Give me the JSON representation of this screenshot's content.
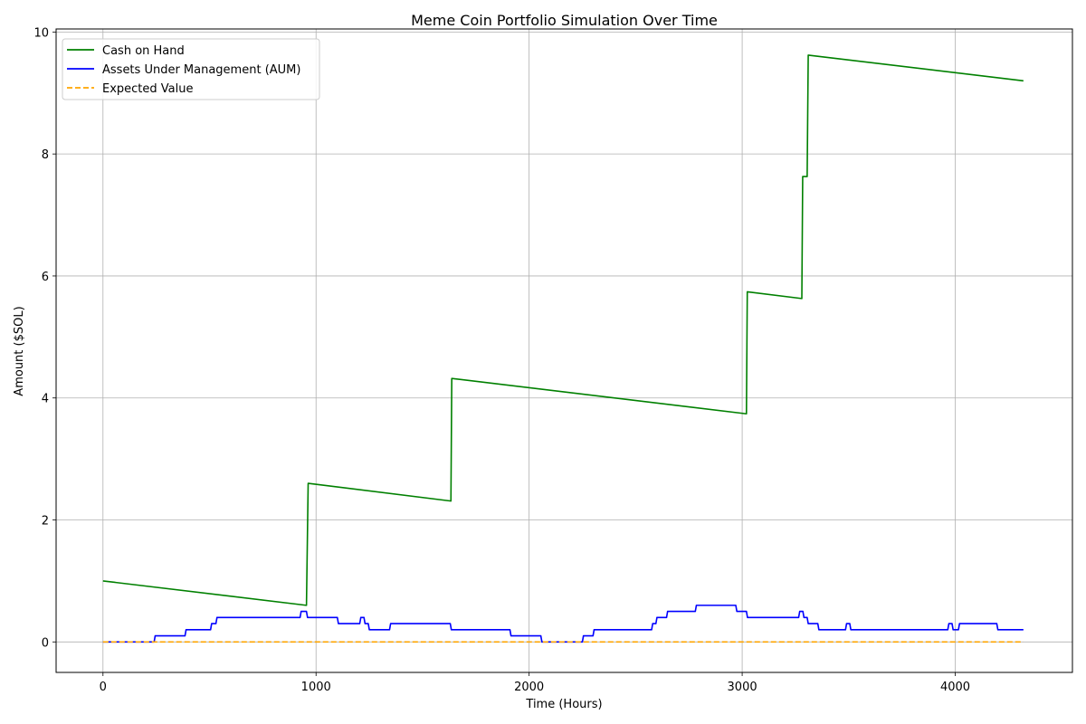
{
  "chart_data": {
    "type": "line",
    "title": "Meme Coin Portfolio Simulation Over Time",
    "xlabel": "Time (Hours)",
    "ylabel": "Amount ($SOL)",
    "xlim": [
      -220,
      4550
    ],
    "ylim": [
      -0.5,
      10.05
    ],
    "xticks": [
      0,
      1000,
      2000,
      3000,
      4000
    ],
    "yticks": [
      0,
      2,
      4,
      6,
      8,
      10
    ],
    "grid": true,
    "legend_position": "top-left",
    "series": [
      {
        "name": "Cash on Hand",
        "color": "#008000",
        "style": "solid",
        "points": [
          [
            0,
            1.0
          ],
          [
            955,
            0.6
          ],
          [
            963,
            2.6
          ],
          [
            1633,
            2.31
          ],
          [
            1637,
            4.32
          ],
          [
            3020,
            3.74
          ],
          [
            3024,
            5.74
          ],
          [
            3280,
            5.63
          ],
          [
            3284,
            7.63
          ],
          [
            3305,
            7.63
          ],
          [
            3310,
            9.62
          ],
          [
            4320,
            9.2
          ]
        ]
      },
      {
        "name": "Assets Under Management (AUM)",
        "color": "#0000ff",
        "style": "solid",
        "points": [
          [
            0,
            0.0
          ],
          [
            240,
            0.0
          ],
          [
            245,
            0.1
          ],
          [
            385,
            0.1
          ],
          [
            390,
            0.2
          ],
          [
            505,
            0.2
          ],
          [
            510,
            0.3
          ],
          [
            530,
            0.3
          ],
          [
            535,
            0.4
          ],
          [
            925,
            0.4
          ],
          [
            930,
            0.5
          ],
          [
            955,
            0.5
          ],
          [
            960,
            0.4
          ],
          [
            1100,
            0.4
          ],
          [
            1105,
            0.3
          ],
          [
            1205,
            0.3
          ],
          [
            1210,
            0.4
          ],
          [
            1225,
            0.4
          ],
          [
            1230,
            0.3
          ],
          [
            1245,
            0.3
          ],
          [
            1250,
            0.2
          ],
          [
            1345,
            0.2
          ],
          [
            1350,
            0.3
          ],
          [
            1630,
            0.3
          ],
          [
            1635,
            0.2
          ],
          [
            1910,
            0.2
          ],
          [
            1915,
            0.1
          ],
          [
            2055,
            0.1
          ],
          [
            2060,
            0.0
          ],
          [
            2250,
            0.0
          ],
          [
            2255,
            0.1
          ],
          [
            2300,
            0.1
          ],
          [
            2305,
            0.2
          ],
          [
            2575,
            0.2
          ],
          [
            2580,
            0.3
          ],
          [
            2595,
            0.3
          ],
          [
            2600,
            0.4
          ],
          [
            2645,
            0.4
          ],
          [
            2650,
            0.5
          ],
          [
            2780,
            0.5
          ],
          [
            2785,
            0.6
          ],
          [
            2970,
            0.6
          ],
          [
            2975,
            0.5
          ],
          [
            3020,
            0.5
          ],
          [
            3025,
            0.4
          ],
          [
            3265,
            0.4
          ],
          [
            3270,
            0.5
          ],
          [
            3285,
            0.5
          ],
          [
            3290,
            0.4
          ],
          [
            3305,
            0.4
          ],
          [
            3310,
            0.3
          ],
          [
            3355,
            0.3
          ],
          [
            3360,
            0.2
          ],
          [
            3485,
            0.2
          ],
          [
            3490,
            0.3
          ],
          [
            3505,
            0.3
          ],
          [
            3510,
            0.2
          ],
          [
            3965,
            0.2
          ],
          [
            3970,
            0.3
          ],
          [
            3985,
            0.3
          ],
          [
            3990,
            0.2
          ],
          [
            4015,
            0.2
          ],
          [
            4020,
            0.3
          ],
          [
            4195,
            0.3
          ],
          [
            4200,
            0.2
          ],
          [
            4320,
            0.2
          ]
        ]
      },
      {
        "name": "Expected Value",
        "color": "#ffa500",
        "style": "dashed",
        "points": [
          [
            0,
            0.0
          ],
          [
            4320,
            0.0
          ]
        ]
      }
    ]
  }
}
